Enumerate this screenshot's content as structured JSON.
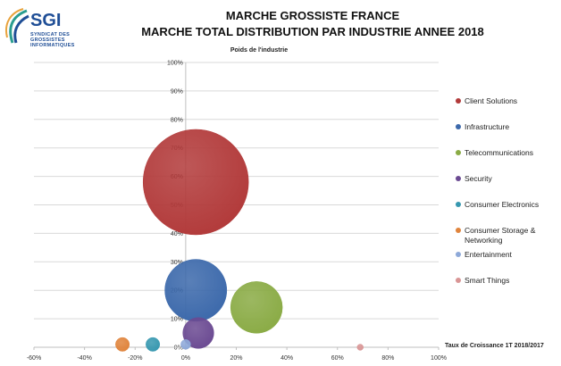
{
  "logo": {
    "name": "SGI",
    "subtitle": "Syndicat des Grossistes Informatiques"
  },
  "header": {
    "title_line1": "MARCHE GROSSISTE FRANCE",
    "title_line2": "MARCHE TOTAL DISTRIBUTION PAR INDUSTRIE  ANNEE 2018"
  },
  "chart_data": {
    "type": "bubble",
    "title": "Poids de l'industrie",
    "xlabel": "Taux de Croissance  1T 2018/2017",
    "ylabel": "",
    "xlim": [
      -0.6,
      1.0
    ],
    "ylim": [
      0,
      1.0
    ],
    "x_ticks": [
      "-60%",
      "-40%",
      "-20%",
      "0%",
      "20%",
      "40%",
      "60%",
      "80%",
      "100%"
    ],
    "y_ticks": [
      "0%",
      "10%",
      "20%",
      "30%",
      "40%",
      "50%",
      "60%",
      "70%",
      "80%",
      "90%",
      "100%"
    ],
    "grid": true,
    "legend_position": "right",
    "series": [
      {
        "name": "Client Solutions",
        "x": 0.04,
        "y": 0.58,
        "size": 0.58,
        "color": "#b23a3a"
      },
      {
        "name": "Infrastructure",
        "x": 0.04,
        "y": 0.2,
        "size": 0.2,
        "color": "#3c69ab"
      },
      {
        "name": "Telecommunications",
        "x": 0.28,
        "y": 0.14,
        "size": 0.14,
        "color": "#8aab45"
      },
      {
        "name": "Security",
        "x": 0.05,
        "y": 0.05,
        "size": 0.05,
        "color": "#6b4a92"
      },
      {
        "name": "Consumer Electronics",
        "x": -0.13,
        "y": 0.01,
        "size": 0.01,
        "color": "#3798b0"
      },
      {
        "name": "Consumer Storage & Networking",
        "x": -0.25,
        "y": 0.01,
        "size": 0.01,
        "color": "#e0843c"
      },
      {
        "name": "Entertainment",
        "x": 0.0,
        "y": 0.01,
        "size": 0.005,
        "color": "#8ea9d9"
      },
      {
        "name": "Smart Things",
        "x": 0.69,
        "y": 0.0,
        "size": 0.002,
        "color": "#d99595"
      }
    ]
  }
}
